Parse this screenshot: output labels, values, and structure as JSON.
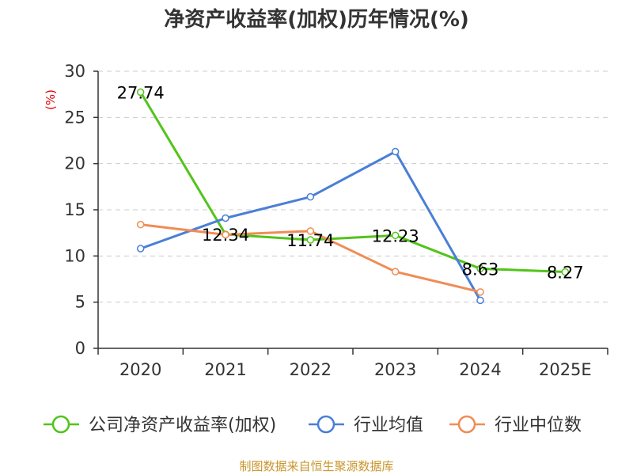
{
  "chart_data": {
    "type": "line",
    "title": "净资产收益率(加权)历年情况(%)",
    "ylabel": "(%)",
    "xlabel": "",
    "categories": [
      "2020",
      "2021",
      "2022",
      "2023",
      "2024",
      "2025E"
    ],
    "ylim": [
      0,
      30
    ],
    "yticks": [
      0,
      5,
      10,
      15,
      20,
      25,
      30
    ],
    "grid": true,
    "legend_position": "bottom",
    "series": [
      {
        "name": "公司净资产收益率(加权)",
        "color": "#52c41a",
        "values": [
          27.74,
          12.34,
          11.74,
          12.23,
          8.63,
          8.27
        ],
        "labels": [
          "27.74",
          "12.34",
          "11.74",
          "12.23",
          "8.63",
          "8.27"
        ]
      },
      {
        "name": "行业均值",
        "color": "#4a7fd6",
        "values": [
          10.8,
          14.1,
          16.4,
          21.3,
          5.2,
          null
        ]
      },
      {
        "name": "行业中位数",
        "color": "#f08c55",
        "values": [
          13.4,
          12.3,
          12.7,
          8.3,
          6.1,
          null
        ]
      }
    ],
    "source": "制图数据来自恒生聚源数据库"
  }
}
